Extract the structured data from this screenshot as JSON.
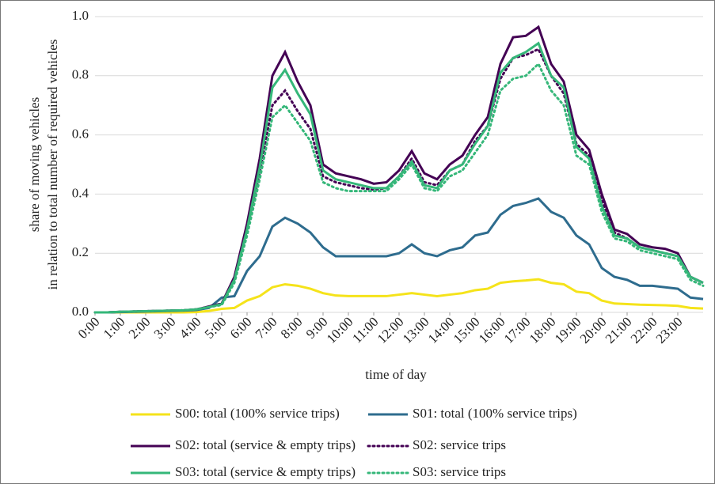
{
  "chart_data": {
    "type": "line",
    "xlabel": "time of day",
    "ylabel": [
      "share of moving vehicles",
      "in relation to total number of required vehicles"
    ],
    "x": [
      0,
      0.5,
      1,
      1.5,
      2,
      2.5,
      3,
      3.5,
      4,
      4.5,
      5,
      5.5,
      6,
      6.5,
      7,
      7.5,
      8,
      8.5,
      9,
      9.5,
      10,
      10.5,
      11,
      11.5,
      12,
      12.5,
      13,
      13.5,
      14,
      14.5,
      15,
      15.5,
      16,
      16.5,
      17,
      17.5,
      18,
      18.5,
      19,
      19.5,
      20,
      20.5,
      21,
      21.5,
      22,
      22.5,
      23,
      23.5,
      24
    ],
    "xlim": [
      0,
      24
    ],
    "xticks": [
      {
        "value": 0,
        "label": "0:00"
      },
      {
        "value": 1,
        "label": "1:00"
      },
      {
        "value": 2,
        "label": "2:00"
      },
      {
        "value": 3,
        "label": "3:00"
      },
      {
        "value": 4,
        "label": "4:00"
      },
      {
        "value": 5,
        "label": "5:00"
      },
      {
        "value": 6,
        "label": "6:00"
      },
      {
        "value": 7,
        "label": "7:00"
      },
      {
        "value": 8,
        "label": "8:00"
      },
      {
        "value": 9,
        "label": "9:00"
      },
      {
        "value": 10,
        "label": "10:00"
      },
      {
        "value": 11,
        "label": "11:00"
      },
      {
        "value": 12,
        "label": "12:00"
      },
      {
        "value": 13,
        "label": "13:00"
      },
      {
        "value": 14,
        "label": "14:00"
      },
      {
        "value": 15,
        "label": "15:00"
      },
      {
        "value": 16,
        "label": "16:00"
      },
      {
        "value": 17,
        "label": "17:00"
      },
      {
        "value": 18,
        "label": "18:00"
      },
      {
        "value": 19,
        "label": "19:00"
      },
      {
        "value": 20,
        "label": "20:00"
      },
      {
        "value": 21,
        "label": "21:00"
      },
      {
        "value": 22,
        "label": "22:00"
      },
      {
        "value": 23,
        "label": "23:00"
      }
    ],
    "ylim": [
      0,
      1
    ],
    "yticks": [
      {
        "value": 0,
        "label": "0.0"
      },
      {
        "value": 0.2,
        "label": "0.2"
      },
      {
        "value": 0.4,
        "label": "0.4"
      },
      {
        "value": 0.6,
        "label": "0.6"
      },
      {
        "value": 0.8,
        "label": "0.8"
      },
      {
        "value": 1,
        "label": "1.0"
      }
    ],
    "grid": true,
    "legend": "bottom",
    "series": [
      {
        "name": "S00: total (100% service trips)",
        "color": "#f5e31a",
        "style": "solid",
        "values": [
          0,
          0,
          0,
          0,
          0,
          0,
          0,
          0,
          0.001,
          0.005,
          0.012,
          0.015,
          0.04,
          0.055,
          0.085,
          0.095,
          0.09,
          0.08,
          0.065,
          0.057,
          0.055,
          0.055,
          0.055,
          0.055,
          0.06,
          0.065,
          0.06,
          0.055,
          0.06,
          0.065,
          0.075,
          0.08,
          0.1,
          0.105,
          0.108,
          0.112,
          0.1,
          0.095,
          0.07,
          0.065,
          0.04,
          0.03,
          0.028,
          0.026,
          0.025,
          0.024,
          0.022,
          0.015,
          0.013
        ]
      },
      {
        "name": "S01: total (100% service trips)",
        "color": "#2e6c8e",
        "style": "solid",
        "values": [
          0,
          0,
          0.001,
          0.002,
          0.003,
          0.004,
          0.005,
          0.006,
          0.008,
          0.015,
          0.05,
          0.055,
          0.14,
          0.19,
          0.29,
          0.32,
          0.3,
          0.27,
          0.22,
          0.19,
          0.19,
          0.19,
          0.19,
          0.19,
          0.2,
          0.23,
          0.2,
          0.19,
          0.21,
          0.22,
          0.26,
          0.27,
          0.33,
          0.36,
          0.37,
          0.385,
          0.34,
          0.32,
          0.26,
          0.23,
          0.15,
          0.12,
          0.11,
          0.09,
          0.09,
          0.085,
          0.08,
          0.05,
          0.045
        ]
      },
      {
        "name": "S02: total (service & empty trips)",
        "color": "#440154",
        "style": "solid",
        "values": [
          0,
          0,
          0.002,
          0.003,
          0.004,
          0.005,
          0.006,
          0.007,
          0.01,
          0.02,
          0.03,
          0.12,
          0.3,
          0.52,
          0.8,
          0.88,
          0.78,
          0.7,
          0.5,
          0.47,
          0.46,
          0.45,
          0.435,
          0.44,
          0.48,
          0.545,
          0.47,
          0.45,
          0.5,
          0.53,
          0.6,
          0.66,
          0.84,
          0.93,
          0.935,
          0.965,
          0.84,
          0.78,
          0.6,
          0.55,
          0.4,
          0.28,
          0.265,
          0.23,
          0.22,
          0.215,
          0.2,
          0.12,
          0.1
        ]
      },
      {
        "name": "S02: service trips",
        "color": "#440154",
        "style": "dotted",
        "values": [
          0,
          0,
          0.002,
          0.003,
          0.004,
          0.005,
          0.006,
          0.007,
          0.01,
          0.018,
          0.028,
          0.11,
          0.28,
          0.47,
          0.7,
          0.75,
          0.68,
          0.62,
          0.46,
          0.44,
          0.43,
          0.42,
          0.415,
          0.42,
          0.46,
          0.52,
          0.44,
          0.43,
          0.48,
          0.5,
          0.58,
          0.63,
          0.79,
          0.86,
          0.87,
          0.89,
          0.8,
          0.74,
          0.57,
          0.53,
          0.38,
          0.27,
          0.25,
          0.22,
          0.21,
          0.2,
          0.19,
          0.12,
          0.1
        ]
      },
      {
        "name": "S03: total (service & empty trips)",
        "color": "#35b779",
        "style": "solid",
        "values": [
          0,
          0,
          0.002,
          0.003,
          0.004,
          0.005,
          0.006,
          0.007,
          0.01,
          0.018,
          0.028,
          0.11,
          0.28,
          0.49,
          0.76,
          0.82,
          0.74,
          0.67,
          0.48,
          0.45,
          0.44,
          0.43,
          0.42,
          0.42,
          0.46,
          0.51,
          0.43,
          0.42,
          0.48,
          0.5,
          0.57,
          0.63,
          0.81,
          0.86,
          0.88,
          0.91,
          0.8,
          0.76,
          0.56,
          0.52,
          0.36,
          0.26,
          0.25,
          0.22,
          0.21,
          0.2,
          0.19,
          0.12,
          0.1
        ]
      },
      {
        "name": "S03: service trips",
        "color": "#35b779",
        "style": "dotted",
        "values": [
          0,
          0,
          0.002,
          0.003,
          0.004,
          0.005,
          0.006,
          0.007,
          0.01,
          0.018,
          0.025,
          0.1,
          0.26,
          0.45,
          0.66,
          0.7,
          0.64,
          0.58,
          0.44,
          0.42,
          0.41,
          0.41,
          0.41,
          0.41,
          0.45,
          0.5,
          0.42,
          0.41,
          0.46,
          0.48,
          0.54,
          0.6,
          0.75,
          0.79,
          0.8,
          0.84,
          0.75,
          0.7,
          0.53,
          0.5,
          0.34,
          0.25,
          0.24,
          0.21,
          0.2,
          0.19,
          0.18,
          0.11,
          0.09
        ]
      }
    ]
  }
}
